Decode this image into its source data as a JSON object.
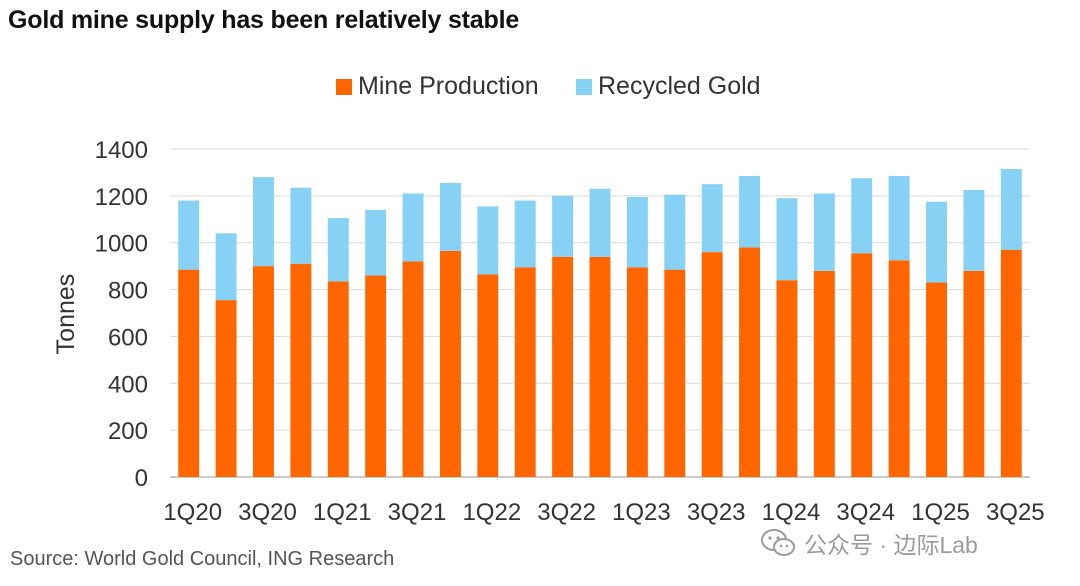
{
  "chart_data": {
    "type": "bar",
    "stacked": true,
    "title": "Gold mine supply has been relatively stable",
    "ylabel": "Tonnes",
    "xlabel": "",
    "ylim": [
      0,
      1400
    ],
    "yticks": [
      0,
      200,
      400,
      600,
      800,
      1000,
      1200,
      1400
    ],
    "grid": true,
    "legend_position": "top-center",
    "categories": [
      "1Q20",
      "2Q20",
      "3Q20",
      "4Q20",
      "1Q21",
      "2Q21",
      "3Q21",
      "4Q21",
      "1Q22",
      "2Q22",
      "3Q22",
      "4Q22",
      "1Q23",
      "2Q23",
      "3Q23",
      "4Q23",
      "1Q24",
      "2Q24",
      "3Q24",
      "4Q24",
      "1Q25",
      "2Q25",
      "3Q25"
    ],
    "tick_labels": [
      "1Q20",
      "",
      "3Q20",
      "",
      "1Q21",
      "",
      "3Q21",
      "",
      "1Q22",
      "",
      "3Q22",
      "",
      "1Q23",
      "",
      "3Q23",
      "",
      "1Q24",
      "",
      "3Q24",
      "",
      "1Q25",
      "",
      "3Q25"
    ],
    "series": [
      {
        "name": "Mine Production",
        "color": "#FF6600",
        "values": [
          885,
          755,
          900,
          910,
          835,
          860,
          920,
          965,
          865,
          895,
          940,
          940,
          895,
          885,
          960,
          980,
          840,
          880,
          955,
          925,
          830,
          880,
          970
        ]
      },
      {
        "name": "Recycled Gold",
        "color": "#87D1F5",
        "values": [
          295,
          285,
          380,
          325,
          270,
          280,
          290,
          290,
          290,
          285,
          260,
          290,
          300,
          320,
          290,
          305,
          350,
          330,
          320,
          360,
          345,
          345,
          345
        ]
      }
    ],
    "source": "Source: World Gold Council, ING Research"
  },
  "watermark": {
    "text": "公众号 · 边际Lab"
  }
}
